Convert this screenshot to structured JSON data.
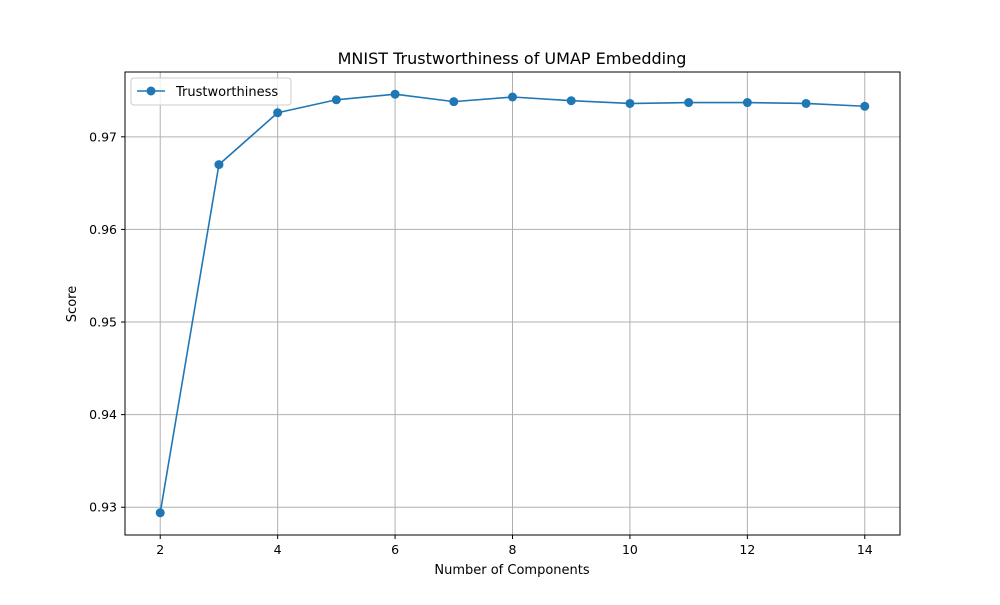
{
  "chart_data": {
    "type": "line",
    "title": "MNIST Trustworthiness of UMAP Embedding",
    "xlabel": "Number of Components",
    "ylabel": "Score",
    "x": [
      2,
      3,
      4,
      5,
      6,
      7,
      8,
      9,
      10,
      11,
      12,
      13,
      14
    ],
    "series": [
      {
        "name": "Trustworthiness",
        "color": "#1f77b4",
        "marker": "circle",
        "values": [
          0.9294,
          0.967,
          0.9726,
          0.974,
          0.9746,
          0.9738,
          0.9743,
          0.9739,
          0.9736,
          0.9737,
          0.9737,
          0.9736,
          0.9733
        ]
      }
    ],
    "xlim": [
      1.4,
      14.6
    ],
    "ylim": [
      0.927,
      0.977
    ],
    "xticks": [
      2,
      4,
      6,
      8,
      10,
      12,
      14
    ],
    "xtick_labels": [
      "2",
      "4",
      "6",
      "8",
      "10",
      "12",
      "14"
    ],
    "yticks": [
      0.93,
      0.94,
      0.95,
      0.96,
      0.97
    ],
    "ytick_labels": [
      "0.93",
      "0.94",
      "0.95",
      "0.96",
      "0.97"
    ],
    "grid": true,
    "legend_position": "top-left"
  }
}
